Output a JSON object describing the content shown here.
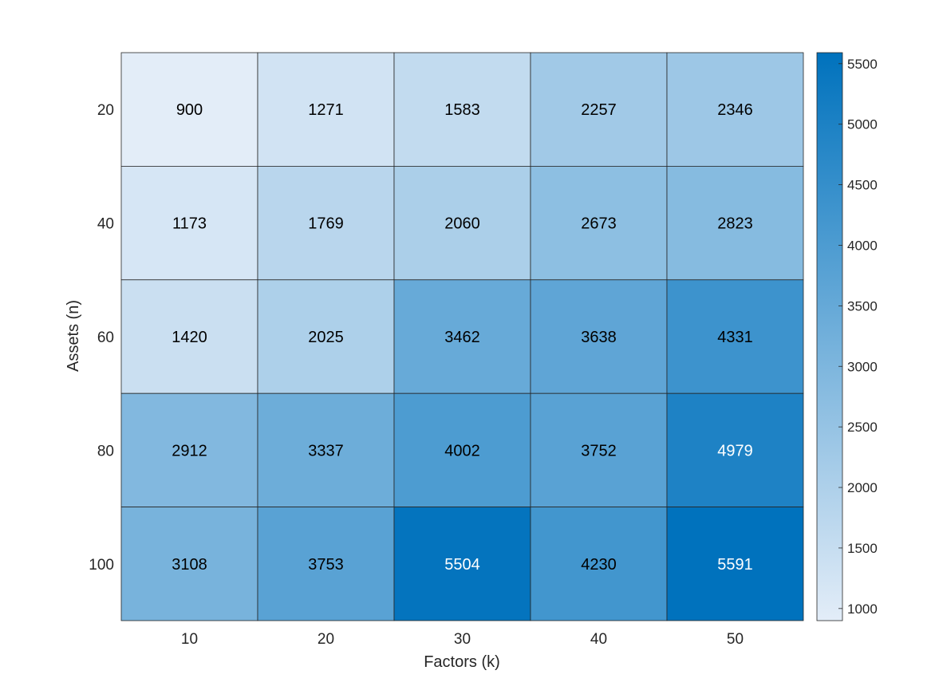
{
  "chart_data": {
    "type": "heatmap",
    "xlabel": "Factors (k)",
    "ylabel": "Assets (n)",
    "x": [
      "10",
      "20",
      "30",
      "40",
      "50"
    ],
    "y": [
      "20",
      "40",
      "60",
      "80",
      "100"
    ],
    "values": [
      [
        900,
        1271,
        1583,
        2257,
        2346
      ],
      [
        1173,
        1769,
        2060,
        2673,
        2823
      ],
      [
        1420,
        2025,
        3462,
        3638,
        4331
      ],
      [
        2912,
        3337,
        4002,
        3752,
        4979
      ],
      [
        3108,
        3753,
        5504,
        4230,
        5591
      ]
    ],
    "colorbar": {
      "range": [
        900,
        5591
      ],
      "ticks": [
        1000,
        1500,
        2000,
        2500,
        3000,
        3500,
        4000,
        4500,
        5000,
        5500
      ]
    },
    "colors": {
      "low": "#e3edf8",
      "high": "#0072bd",
      "text_dark": "#000000",
      "text_light": "#ffffff"
    }
  }
}
